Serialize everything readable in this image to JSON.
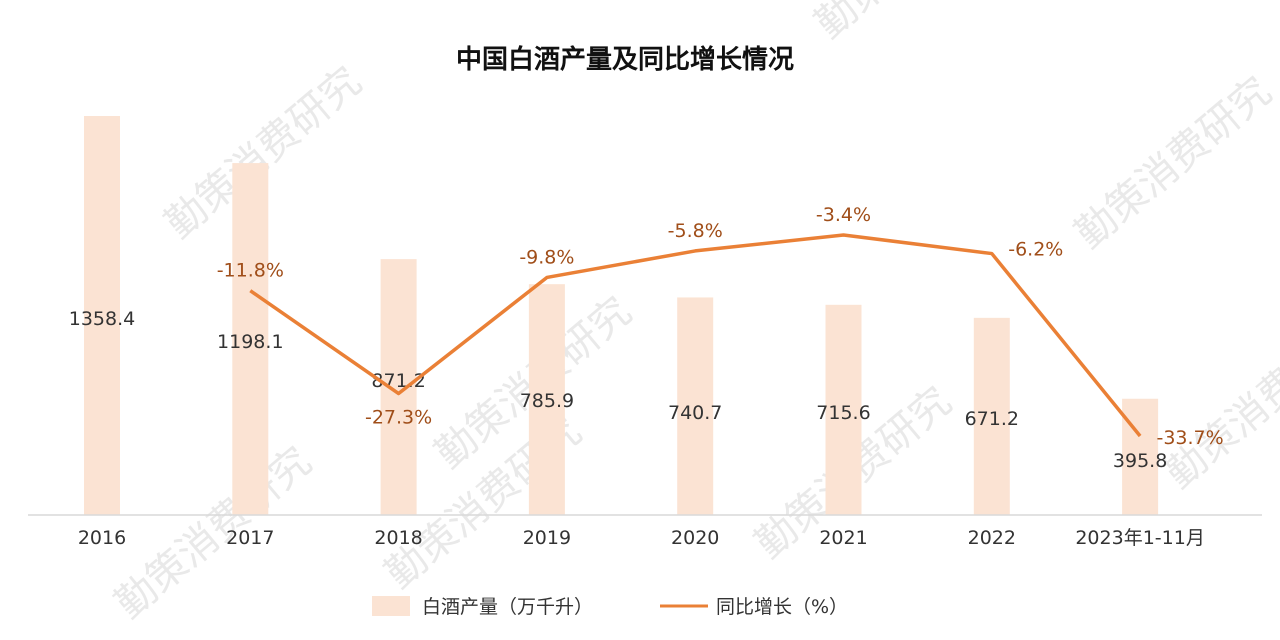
{
  "chart_data": {
    "type": "bar",
    "title": "中国白酒产量及同比增长情况",
    "categories": [
      "2016",
      "2017",
      "2018",
      "2019",
      "2020",
      "2021",
      "2022",
      "2023年1-11月"
    ],
    "series": [
      {
        "name": "白酒产量（万千升）",
        "type": "bar",
        "values": [
          1358.4,
          1198.1,
          871.2,
          785.9,
          740.7,
          715.6,
          671.2,
          395.8
        ],
        "labels": [
          "1358.4",
          "1198.1",
          "871.2",
          "785.9",
          "740.7",
          "715.6",
          "671.2",
          "395.8"
        ],
        "color": "#fbe3d3",
        "axis_range": [
          0,
          1400
        ]
      },
      {
        "name": "同比增长（%）",
        "type": "line",
        "values": [
          null,
          -11.8,
          -27.3,
          -9.8,
          -5.8,
          -3.4,
          -6.2,
          -33.7
        ],
        "labels": [
          "",
          "-11.8%",
          "-27.3%",
          "-9.8%",
          "-5.8%",
          "-3.4%",
          "-6.2%",
          "-33.7%"
        ],
        "color": "#ea8036",
        "axis_range": [
          -38,
          0
        ]
      }
    ],
    "legend_position": "bottom-center",
    "grid": false,
    "watermark": "勤策消费研究"
  }
}
